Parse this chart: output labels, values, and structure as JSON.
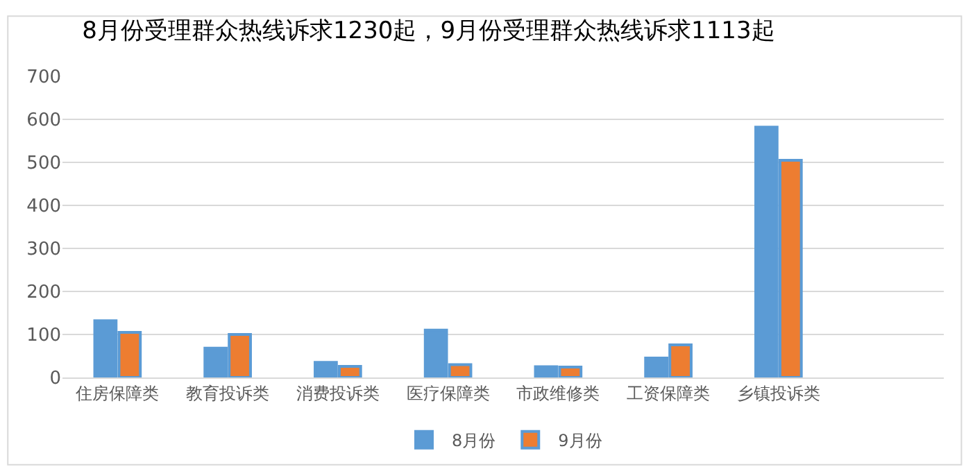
{
  "chart_data": {
    "type": "bar",
    "title": "8月份受理群众热线诉求1230起，9月份受理群众热线诉求1113起",
    "categories": [
      "住房保障类",
      "教育投诉类",
      "消费投诉类",
      "医疗保障类",
      "市政维修类",
      "工资保障类",
      "乡镇投诉类",
      null
    ],
    "series": [
      {
        "name": "8月份",
        "color": "#5b9bd5",
        "values": [
          132,
          68,
          35,
          110,
          25,
          45,
          582,
          null
        ]
      },
      {
        "name": "9月份",
        "color": "#ed7d31",
        "values": [
          105,
          100,
          26,
          30,
          24,
          76,
          505,
          null
        ]
      }
    ],
    "ylim": [
      0,
      700
    ],
    "yticks": [
      0,
      100,
      200,
      300,
      400,
      500,
      600,
      700
    ],
    "grid": "y",
    "legend": "bottom"
  }
}
